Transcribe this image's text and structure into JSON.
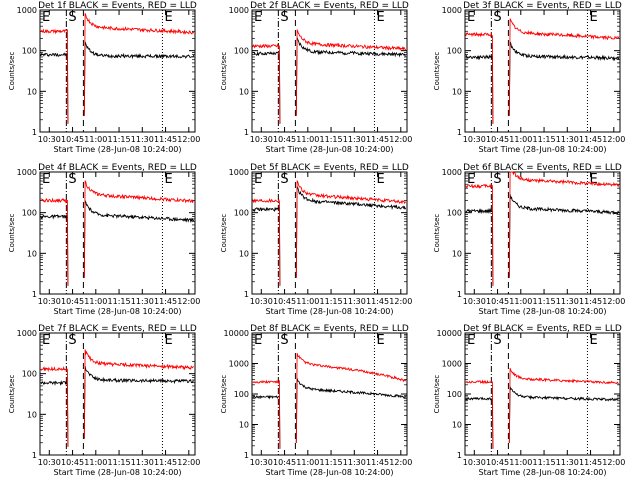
{
  "chart_data": [
    {
      "type": "line",
      "title": "Det 1f BLACK = Events, RED = LLD",
      "xlabel": "Start Time (28-Jun-08 10:24:00)",
      "ylabel": "Counts/sec",
      "xticks": [
        "10:30",
        "10:45",
        "11:00",
        "11:15",
        "11:30",
        "11:45",
        "12:00"
      ],
      "yticks": [
        "1",
        "10",
        "100",
        "1000"
      ],
      "ylim": [
        1,
        1000
      ],
      "yscale": "log",
      "xlim": [
        "10:24",
        "12:04"
      ],
      "markers": [
        "S",
        "E"
      ],
      "grid": false,
      "series": [
        {
          "name": "Events",
          "color": "#000000",
          "levels": {
            "pre": 80,
            "post_start": 75,
            "post_end": 72
          }
        },
        {
          "name": "LLD",
          "color": "#ff0000",
          "levels": {
            "pre": 300,
            "post_start": 380,
            "post_end": 280
          }
        }
      ]
    },
    {
      "type": "line",
      "title": "Det 2f BLACK = Events, RED = LLD",
      "xlabel": "Start Time (28-Jun-08 10:24:00)",
      "ylabel": "Counts/sec",
      "xticks": [
        "10:30",
        "10:45",
        "11:00",
        "11:15",
        "11:30",
        "11:45",
        "12:00"
      ],
      "yticks": [
        "1",
        "10",
        "100",
        "1000"
      ],
      "ylim": [
        1,
        1000
      ],
      "yscale": "log",
      "xlim": [
        "10:24",
        "12:04"
      ],
      "markers": [
        "S",
        "E"
      ],
      "grid": false,
      "series": [
        {
          "name": "Events",
          "color": "#000000",
          "levels": {
            "pre": 85,
            "post_start": 95,
            "post_end": 80
          }
        },
        {
          "name": "LLD",
          "color": "#ff0000",
          "levels": {
            "pre": 130,
            "post_start": 150,
            "post_end": 110
          }
        }
      ]
    },
    {
      "type": "line",
      "title": "Det 3f BLACK = Events, RED = LLD",
      "xlabel": "Start Time (28-Jun-08 10:24:00)",
      "ylabel": "Counts/sec",
      "xticks": [
        "10:30",
        "10:45",
        "11:00",
        "11:15",
        "11:30",
        "11:45",
        "12:00"
      ],
      "yticks": [
        "1",
        "10",
        "100",
        "1000"
      ],
      "ylim": [
        1,
        1000
      ],
      "yscale": "log",
      "xlim": [
        "10:24",
        "12:04"
      ],
      "markers": [
        "S",
        "E"
      ],
      "grid": false,
      "series": [
        {
          "name": "Events",
          "color": "#000000",
          "levels": {
            "pre": 70,
            "post_start": 75,
            "post_end": 65
          }
        },
        {
          "name": "LLD",
          "color": "#ff0000",
          "levels": {
            "pre": 250,
            "post_start": 280,
            "post_end": 200
          }
        }
      ]
    },
    {
      "type": "line",
      "title": "Det 4f BLACK = Events, RED = LLD",
      "xlabel": "Start Time (28-Jun-08 10:24:00)",
      "ylabel": "Counts/sec",
      "xticks": [
        "10:30",
        "10:45",
        "11:00",
        "11:15",
        "11:30",
        "11:45",
        "12:00"
      ],
      "yticks": [
        "1",
        "10",
        "100",
        "1000"
      ],
      "ylim": [
        1,
        1000
      ],
      "yscale": "log",
      "xlim": [
        "10:24",
        "12:04"
      ],
      "markers": [
        "S",
        "E"
      ],
      "grid": false,
      "series": [
        {
          "name": "Events",
          "color": "#000000",
          "levels": {
            "pre": 80,
            "post_start": 90,
            "post_end": 65
          }
        },
        {
          "name": "LLD",
          "color": "#ff0000",
          "levels": {
            "pre": 200,
            "post_start": 280,
            "post_end": 190
          }
        }
      ]
    },
    {
      "type": "line",
      "title": "Det 5f BLACK = Events, RED = LLD",
      "xlabel": "Start Time (28-Jun-08 10:24:00)",
      "ylabel": "Counts/sec",
      "xticks": [
        "10:30",
        "10:45",
        "11:00",
        "11:15",
        "11:30",
        "11:45",
        "12:00"
      ],
      "yticks": [
        "1",
        "10",
        "100",
        "1000"
      ],
      "ylim": [
        1,
        1000
      ],
      "yscale": "log",
      "xlim": [
        "10:24",
        "12:04"
      ],
      "markers": [
        "S",
        "E"
      ],
      "grid": false,
      "series": [
        {
          "name": "Events",
          "color": "#000000",
          "levels": {
            "pre": 120,
            "post_start": 200,
            "post_end": 130
          }
        },
        {
          "name": "LLD",
          "color": "#ff0000",
          "levels": {
            "pre": 200,
            "post_start": 280,
            "post_end": 180
          }
        }
      ]
    },
    {
      "type": "line",
      "title": "Det 6f BLACK = Events, RED = LLD",
      "xlabel": "Start Time (28-Jun-08 10:24:00)",
      "ylabel": "Counts/sec",
      "xticks": [
        "10:30",
        "10:45",
        "11:00",
        "11:15",
        "11:30",
        "11:45",
        "12:00"
      ],
      "yticks": [
        "1",
        "10",
        "100",
        "1000"
      ],
      "ylim": [
        1,
        1000
      ],
      "yscale": "log",
      "xlim": [
        "10:24",
        "12:04"
      ],
      "markers": [
        "S",
        "E"
      ],
      "grid": false,
      "series": [
        {
          "name": "Events",
          "color": "#000000",
          "levels": {
            "pre": 110,
            "post_start": 130,
            "post_end": 100
          }
        },
        {
          "name": "LLD",
          "color": "#ff0000",
          "levels": {
            "pre": 450,
            "post_start": 650,
            "post_end": 480
          }
        }
      ]
    },
    {
      "type": "line",
      "title": "Det 7f BLACK = Events, RED = LLD",
      "xlabel": "Start Time (28-Jun-08 10:24:00)",
      "ylabel": "Counts/sec",
      "xticks": [
        "10:30",
        "10:45",
        "11:00",
        "11:15",
        "11:30",
        "11:45",
        "12:00"
      ],
      "yticks": [
        "1",
        "10",
        "100",
        "1000"
      ],
      "ylim": [
        1,
        1000
      ],
      "yscale": "log",
      "xlim": [
        "10:24",
        "12:04"
      ],
      "markers": [
        "S",
        "E"
      ],
      "grid": false,
      "series": [
        {
          "name": "Events",
          "color": "#000000",
          "levels": {
            "pre": 60,
            "post_start": 70,
            "post_end": 65
          }
        },
        {
          "name": "LLD",
          "color": "#ff0000",
          "levels": {
            "pre": 130,
            "post_start": 180,
            "post_end": 140
          }
        }
      ]
    },
    {
      "type": "line",
      "title": "Det 8f BLACK = Events, RED = LLD",
      "xlabel": "Start Time (28-Jun-08 10:24:00)",
      "ylabel": "Counts/sec",
      "xticks": [
        "10:30",
        "10:45",
        "11:00",
        "11:15",
        "11:30",
        "11:45",
        "12:00"
      ],
      "yticks": [
        "1",
        "10",
        "100",
        "1000",
        "10000"
      ],
      "ylim": [
        1,
        10000
      ],
      "yscale": "log",
      "xlim": [
        "10:24",
        "12:04"
      ],
      "markers": [
        "S",
        "E"
      ],
      "grid": false,
      "series": [
        {
          "name": "Events",
          "color": "#000000",
          "levels": {
            "pre": 80,
            "post_start": 150,
            "post_end": 80
          }
        },
        {
          "name": "LLD",
          "color": "#ff0000",
          "levels": {
            "pre": 250,
            "post_start": 1000,
            "post_end": 260
          }
        }
      ]
    },
    {
      "type": "line",
      "title": "Det 9f BLACK = Events, RED = LLD",
      "xlabel": "Start Time (28-Jun-08 10:24:00)",
      "ylabel": "Counts/sec",
      "xticks": [
        "10:30",
        "10:45",
        "11:00",
        "11:15",
        "11:30",
        "11:45",
        "12:00"
      ],
      "yticks": [
        "1",
        "10",
        "100",
        "1000",
        "10000"
      ],
      "ylim": [
        1,
        10000
      ],
      "yscale": "log",
      "xlim": [
        "10:24",
        "12:04"
      ],
      "markers": [
        "S",
        "E"
      ],
      "grid": false,
      "series": [
        {
          "name": "Events",
          "color": "#000000",
          "levels": {
            "pre": 70,
            "post_start": 80,
            "post_end": 65
          }
        },
        {
          "name": "LLD",
          "color": "#ff0000",
          "levels": {
            "pre": 250,
            "post_start": 320,
            "post_end": 230
          }
        }
      ]
    }
  ]
}
